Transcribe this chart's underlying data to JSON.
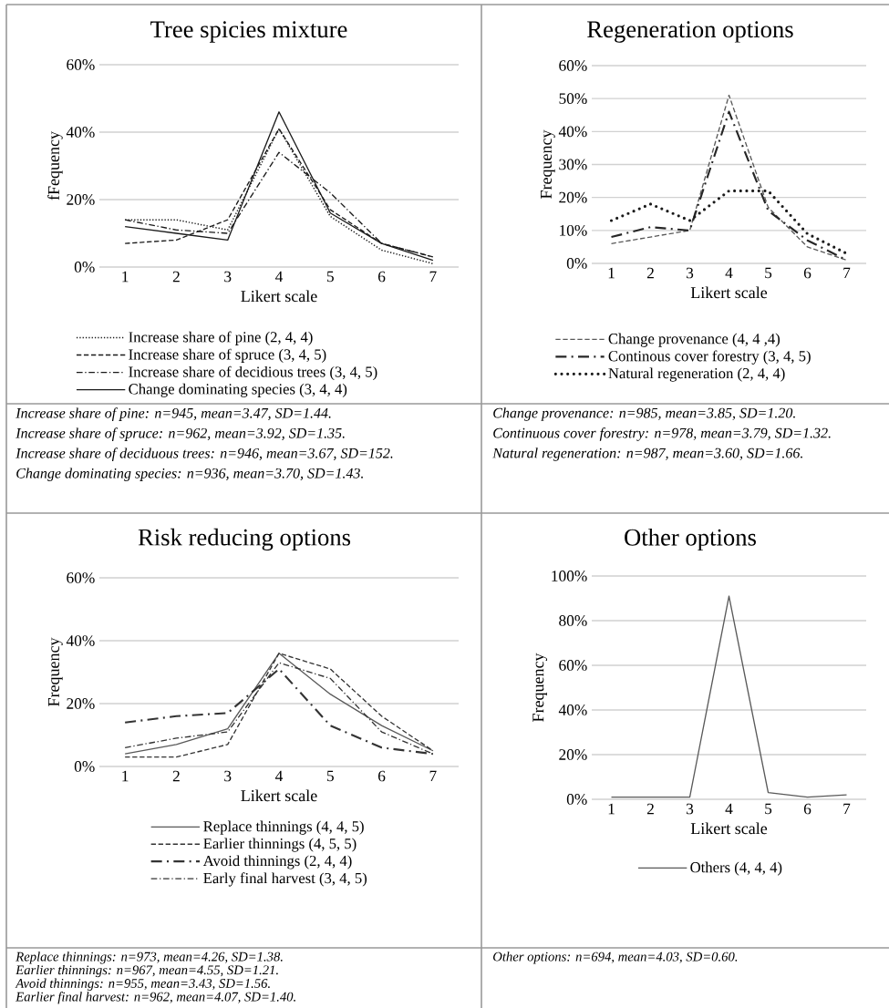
{
  "chart_data": [
    {
      "type": "line",
      "title": "Tree spicies mixture",
      "xlabel": "Likert scale",
      "ylabel": "fFequency",
      "categories": [
        "1",
        "2",
        "3",
        "4",
        "5",
        "6",
        "7"
      ],
      "ylim": [
        0,
        60
      ],
      "yticks": [
        {
          "value": 0,
          "label": "0%"
        },
        {
          "value": 20,
          "label": "20%"
        },
        {
          "value": 40,
          "label": "40%"
        },
        {
          "value": 60,
          "label": "60%"
        }
      ],
      "grid": "y",
      "legend": "bottom",
      "series": [
        {
          "name": "Increase share of pine (2, 4, 4)",
          "color": "#1a1a1a",
          "line_style": "dotted",
          "values": [
            14,
            14,
            11,
            41,
            15,
            5,
            1
          ]
        },
        {
          "name": "Increase share of spruce (3, 4, 5)",
          "color": "#1a1a1a",
          "line_style": "dashed",
          "values": [
            7,
            8,
            14,
            41,
            17,
            7,
            3
          ]
        },
        {
          "name": "Increase share of decidious trees (3, 4, 5)",
          "color": "#1a1a1a",
          "line_style": "dashdot",
          "values": [
            14,
            11,
            10,
            34,
            22,
            7,
            3
          ]
        },
        {
          "name": "Change dominating species (3, 4, 4)",
          "color": "#1a1a1a",
          "line_style": "solid",
          "values": [
            12,
            10,
            8,
            46,
            16,
            7,
            2
          ]
        }
      ],
      "annotations": [
        "Increase share of pine: n=945, mean=3.47, SD=1.44.",
        "Increase share of spruce: n=962, mean=3.92, SD=1.35.",
        "Increase share of deciduous trees: n=946, mean=3.67, SD=152.",
        "Change dominating species: n=936, mean=3.70, SD=1.43."
      ]
    },
    {
      "type": "line",
      "title": "Regeneration options",
      "xlabel": "Likert scale",
      "ylabel": "Frequency",
      "categories": [
        "1",
        "2",
        "3",
        "4",
        "5",
        "6",
        "7"
      ],
      "ylim": [
        0,
        60
      ],
      "yticks": [
        {
          "value": 0,
          "label": "0%"
        },
        {
          "value": 10,
          "label": "10%"
        },
        {
          "value": 20,
          "label": "20%"
        },
        {
          "value": 30,
          "label": "30%"
        },
        {
          "value": 40,
          "label": "40%"
        },
        {
          "value": 50,
          "label": "50%"
        },
        {
          "value": 60,
          "label": "60%"
        }
      ],
      "grid": "y",
      "legend": "bottom",
      "series": [
        {
          "name": "Change provenance (4, 4 ,4)",
          "color": "#595959",
          "line_style": "dashed",
          "values": [
            6,
            8,
            10,
            51,
            17,
            5,
            1
          ]
        },
        {
          "name": "Continous cover forestry (3, 4, 5)",
          "color": "#262626",
          "line_style": "longdashdot",
          "values": [
            8,
            11,
            10,
            46,
            16,
            7,
            1
          ]
        },
        {
          "name": "Natural regeneration (2, 4, 4)",
          "color": "#1a1a1a",
          "line_style": "heavydotted",
          "values": [
            13,
            18,
            13,
            22,
            22,
            9,
            3
          ]
        }
      ],
      "annotations": [
        "Change provenance: n=985, mean=3.85, SD=1.20.",
        "Continuous cover forestry: n=978, mean=3.79, SD=1.32.",
        "Natural regeneration: n=987, mean=3.60, SD=1.66."
      ]
    },
    {
      "type": "line",
      "title": "Risk reducing options",
      "xlabel": "Likert scale",
      "ylabel": "Frequency",
      "categories": [
        "1",
        "2",
        "3",
        "4",
        "5",
        "6",
        "7"
      ],
      "ylim": [
        0,
        60
      ],
      "yticks": [
        {
          "value": 0,
          "label": "0%"
        },
        {
          "value": 20,
          "label": "20%"
        },
        {
          "value": 40,
          "label": "40%"
        },
        {
          "value": 60,
          "label": "60%"
        }
      ],
      "grid": "y",
      "legend": "bottom",
      "series": [
        {
          "name": "Replace thinnings (4, 4, 5)",
          "color": "#595959",
          "line_style": "solid",
          "values": [
            4,
            7,
            12,
            36,
            23,
            13,
            5
          ]
        },
        {
          "name": "Earlier thinnings (4, 5, 5)",
          "color": "#333333",
          "line_style": "dashed",
          "values": [
            3,
            3,
            7,
            36,
            31,
            16,
            5
          ]
        },
        {
          "name": "Avoid thinnings (2, 4, 4)",
          "color": "#333333",
          "line_style": "longdashdot",
          "values": [
            14,
            16,
            17,
            31,
            13,
            6,
            4
          ]
        },
        {
          "name": "Early final harvest (3, 4, 5)",
          "color": "#333333",
          "line_style": "dashdot",
          "values": [
            6,
            9,
            11,
            33,
            28,
            11,
            4
          ]
        }
      ],
      "annotations": [
        "Replace thinnings: n=973, mean=4.26, SD=1.38.",
        "Earlier thinnings: n=967, mean=4.55, SD=1.21.",
        "Avoid thinnings: n=955, mean=3.43, SD=1.56.",
        "Earlier final harvest: n=962, mean=4.07, SD=1.40."
      ]
    },
    {
      "type": "line",
      "title": "Other options",
      "xlabel": "Likert scale",
      "ylabel": "Frequency",
      "categories": [
        "1",
        "2",
        "3",
        "4",
        "5",
        "6",
        "7"
      ],
      "ylim": [
        0,
        100
      ],
      "yticks": [
        {
          "value": 0,
          "label": "0%"
        },
        {
          "value": 20,
          "label": "20%"
        },
        {
          "value": 40,
          "label": "40%"
        },
        {
          "value": 60,
          "label": "60%"
        },
        {
          "value": 80,
          "label": "80%"
        },
        {
          "value": 100,
          "label": "100%"
        }
      ],
      "grid": "y",
      "legend": "bottom",
      "series": [
        {
          "name": "Others (4, 4, 4)",
          "color": "#595959",
          "line_style": "solid",
          "values": [
            1,
            1,
            1,
            91,
            3,
            1,
            2
          ]
        }
      ],
      "annotations": [
        "Other options: n=694, mean=4.03, SD=0.60."
      ]
    }
  ]
}
